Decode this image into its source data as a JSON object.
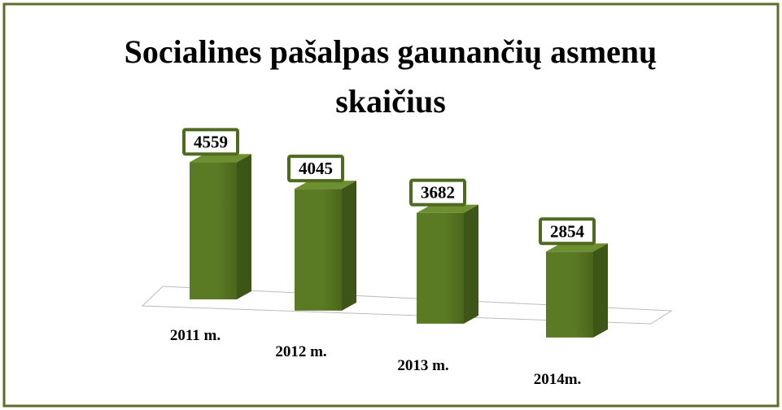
{
  "chart_data": {
    "type": "bar3d",
    "title": "Socialines pašalpas gaunančių asmenų skaičius",
    "categories": [
      "2011 m.",
      "2012 m.",
      "2013 m.",
      "2014m."
    ],
    "values": [
      4559,
      4045,
      3682,
      2854
    ],
    "color": "#5b7a24"
  }
}
